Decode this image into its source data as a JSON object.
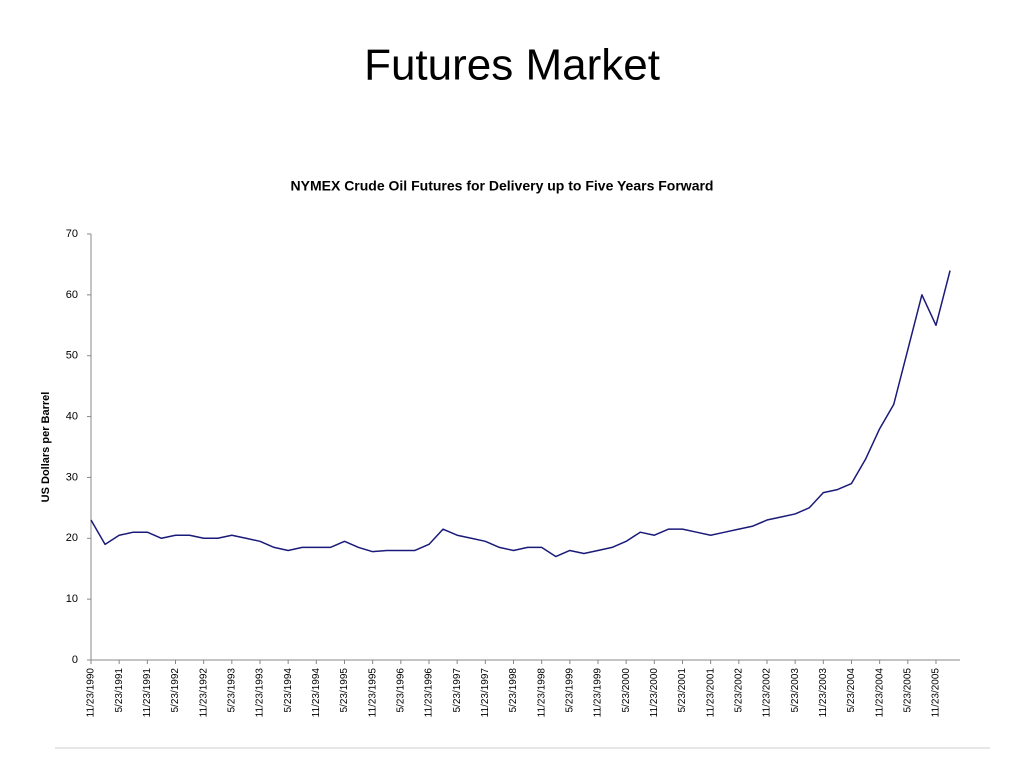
{
  "slide_title": "Futures Market",
  "chart_data": {
    "type": "line",
    "title": "NYMEX Crude Oil Futures for Delivery up to Five Years Forward",
    "y_label": "US Dollars per Barrel",
    "categories": [
      "11/23/1990",
      null,
      "5/23/1991",
      null,
      "11/23/1991",
      null,
      "5/23/1992",
      null,
      "11/23/1992",
      null,
      "5/23/1993",
      null,
      "11/23/1993",
      null,
      "5/23/1994",
      null,
      "11/23/1994",
      null,
      "5/23/1995",
      null,
      "11/23/1995",
      null,
      "5/23/1996",
      null,
      "11/23/1996",
      null,
      "5/23/1997",
      null,
      "11/23/1997",
      null,
      "5/23/1998",
      null,
      "11/23/1998",
      null,
      "5/23/1999",
      null,
      "11/23/1999",
      null,
      "5/23/2000",
      null,
      "11/23/2000",
      null,
      "5/23/2001",
      null,
      "11/23/2001",
      null,
      "5/23/2002",
      null,
      "11/23/2002",
      null,
      "5/23/2003",
      null,
      "11/23/2003",
      null,
      "5/23/2004",
      null,
      "11/23/2004",
      null,
      "5/23/2005",
      null,
      "11/23/2005",
      null
    ],
    "series": [
      {
        "name": "NYMEX Crude Oil Futures",
        "color": "#1a1a7a",
        "values": [
          23,
          19,
          20.5,
          21,
          21,
          20,
          20.5,
          20.5,
          20,
          20,
          20.5,
          20,
          19.5,
          18.5,
          18,
          18.5,
          18.5,
          18.5,
          19.5,
          18.5,
          17.8,
          18,
          18,
          18,
          19,
          21.5,
          20.5,
          20,
          19.5,
          18.5,
          18,
          18.5,
          18.5,
          17,
          18,
          17.5,
          18,
          18.5,
          19.5,
          21,
          20.5,
          21.5,
          21.5,
          21,
          20.5,
          21,
          21.5,
          22,
          23,
          23.5,
          24,
          25,
          27.5,
          28,
          29,
          33,
          38,
          42,
          51,
          60,
          55,
          64
        ]
      }
    ],
    "ylim": [
      0,
      70
    ],
    "yticks": [
      0,
      10,
      20,
      30,
      40,
      50,
      60,
      70
    ],
    "grid": false
  }
}
